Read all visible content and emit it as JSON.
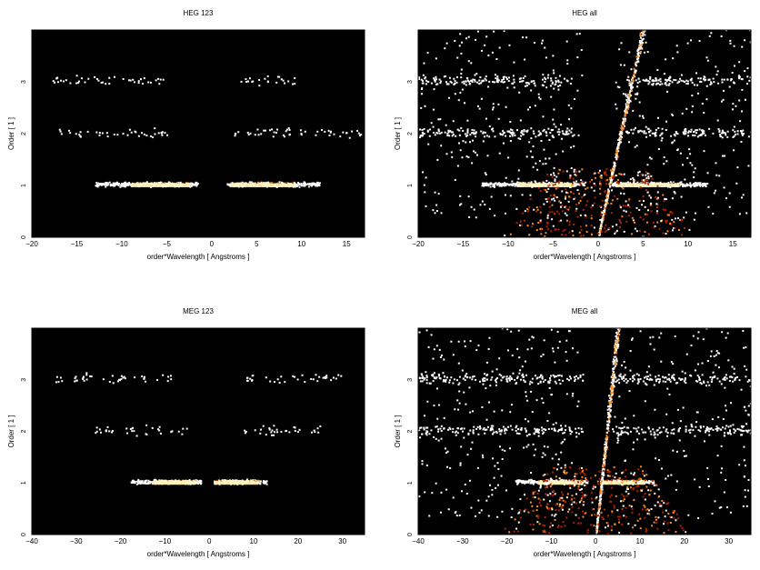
{
  "chart_data": [
    {
      "type": "heatmap",
      "title": "HEG 123",
      "xlabel": "order*Wavelength [ Angstroms ]",
      "ylabel": "Order [ 1 ]",
      "xlim": [
        -20,
        17
      ],
      "ylim": [
        0,
        4
      ],
      "xticks": [
        -20,
        -15,
        -10,
        -5,
        0,
        5,
        10,
        15
      ],
      "yticks": [
        0,
        1,
        2,
        3
      ],
      "bands": [
        {
          "order": 1,
          "x_range": [
            [
              -13,
              -1.5
            ],
            [
              1.5,
              12
            ]
          ],
          "peak": [
            [
              -9,
              -2.5
            ],
            [
              2,
              9
            ]
          ],
          "density": "high"
        },
        {
          "order": 2,
          "x_range": [
            [
              -17,
              -5
            ],
            [
              2,
              17
            ]
          ],
          "density": "low"
        },
        {
          "order": 3,
          "x_range": [
            [
              -18,
              -5
            ],
            [
              3,
              10
            ]
          ],
          "density": "low"
        }
      ]
    },
    {
      "type": "heatmap",
      "title": "HEG all",
      "xlabel": "order*Wavelength [ Angstroms ]",
      "ylabel": "Order [ 1 ]",
      "xlim": [
        -20,
        17
      ],
      "ylim": [
        0,
        4
      ],
      "xticks": [
        -20,
        -15,
        -10,
        -5,
        0,
        5,
        10,
        15
      ],
      "yticks": [
        0,
        1,
        2,
        3
      ],
      "bands": [
        {
          "order": 1,
          "x_range": [
            [
              -13,
              -1.5
            ],
            [
              1.5,
              12
            ]
          ],
          "peak": [
            [
              -9,
              -2.5
            ],
            [
              2,
              9
            ]
          ],
          "density": "high"
        },
        {
          "order": 2,
          "x_range": [
            [
              -20,
              -3
            ],
            [
              3,
              17
            ]
          ],
          "density": "medium"
        },
        {
          "order": 3,
          "x_range": [
            [
              -20,
              -3
            ],
            [
              3,
              17
            ]
          ],
          "density": "medium"
        }
      ],
      "zeroth_order_streak": {
        "x_at_order_0": 0,
        "x_at_order_4": 5
      },
      "background": "diffuse"
    },
    {
      "type": "heatmap",
      "title": "MEG 123",
      "xlabel": "order*Wavelength [ Angstroms ]",
      "ylabel": "Order [ 1 ]",
      "xlim": [
        -40,
        35
      ],
      "ylim": [
        0,
        4
      ],
      "xticks": [
        -40,
        -30,
        -20,
        -10,
        0,
        10,
        20,
        30
      ],
      "yticks": [
        0,
        1,
        2,
        3
      ],
      "bands": [
        {
          "order": 1,
          "x_range": [
            [
              -18,
              -2
            ],
            [
              2,
              13
            ]
          ],
          "peak": [
            [
              -13,
              -3
            ],
            [
              1,
              11
            ]
          ],
          "density": "high"
        },
        {
          "order": 2,
          "x_range": [
            [
              -26,
              -5
            ],
            [
              5,
              25
            ]
          ],
          "density": "low"
        },
        {
          "order": 3,
          "x_range": [
            [
              -35,
              -8
            ],
            [
              8,
              30
            ]
          ],
          "density": "low"
        }
      ]
    },
    {
      "type": "heatmap",
      "title": "MEG all",
      "xlabel": "order*Wavelength [ Angstroms ]",
      "ylabel": "Order [ 1 ]",
      "xlim": [
        -40,
        35
      ],
      "ylim": [
        0,
        4
      ],
      "xticks": [
        -40,
        -30,
        -20,
        -10,
        0,
        10,
        20,
        30
      ],
      "yticks": [
        0,
        1,
        2,
        3
      ],
      "bands": [
        {
          "order": 1,
          "x_range": [
            [
              -18,
              -2
            ],
            [
              2,
              13
            ]
          ],
          "peak": [
            [
              -13,
              -3
            ],
            [
              1,
              11
            ]
          ],
          "density": "high"
        },
        {
          "order": 2,
          "x_range": [
            [
              -40,
              -3
            ],
            [
              3,
              35
            ]
          ],
          "density": "medium"
        },
        {
          "order": 3,
          "x_range": [
            [
              -40,
              -3
            ],
            [
              3,
              35
            ]
          ],
          "density": "medium"
        }
      ],
      "zeroth_order_streak": {
        "x_at_order_0": 0,
        "x_at_order_4": 5
      },
      "background": "diffuse"
    }
  ],
  "colors": {
    "page_background": "#ffffff",
    "plot_background": "#000000",
    "count_low": "#ffffff",
    "count_mid": "#ff8c1a",
    "count_high": "#b22200",
    "count_peak": "#fff4c0"
  }
}
